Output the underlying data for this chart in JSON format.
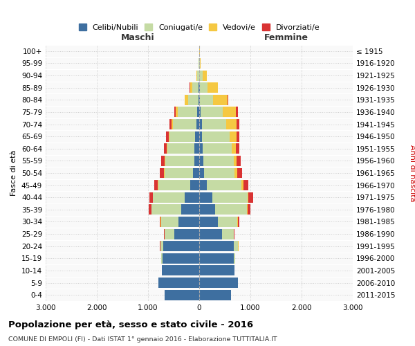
{
  "age_groups": [
    "0-4",
    "5-9",
    "10-14",
    "15-19",
    "20-24",
    "25-29",
    "30-34",
    "35-39",
    "40-44",
    "45-49",
    "50-54",
    "55-59",
    "60-64",
    "65-69",
    "70-74",
    "75-79",
    "80-84",
    "85-89",
    "90-94",
    "95-99",
    "100+"
  ],
  "birth_years": [
    "2011-2015",
    "2006-2010",
    "2001-2005",
    "1996-2000",
    "1991-1995",
    "1986-1990",
    "1981-1985",
    "1976-1980",
    "1971-1975",
    "1966-1970",
    "1961-1965",
    "1956-1960",
    "1951-1955",
    "1946-1950",
    "1941-1945",
    "1936-1940",
    "1931-1935",
    "1926-1930",
    "1921-1925",
    "1916-1920",
    "≤ 1915"
  ],
  "maschi": {
    "celibi": [
      680,
      800,
      730,
      720,
      700,
      480,
      400,
      350,
      280,
      180,
      120,
      100,
      90,
      80,
      60,
      40,
      20,
      10,
      5,
      2,
      2
    ],
    "coniugati": [
      0,
      0,
      0,
      20,
      60,
      200,
      350,
      580,
      620,
      620,
      560,
      560,
      530,
      500,
      450,
      380,
      200,
      120,
      30,
      5,
      2
    ],
    "vedovi": [
      0,
      0,
      0,
      0,
      2,
      2,
      2,
      2,
      3,
      5,
      8,
      10,
      10,
      20,
      30,
      40,
      60,
      50,
      20,
      5,
      2
    ],
    "divorziati": [
      0,
      0,
      0,
      0,
      5,
      10,
      20,
      50,
      70,
      80,
      80,
      70,
      60,
      50,
      40,
      30,
      10,
      5,
      0,
      0,
      0
    ]
  },
  "femmine": {
    "nubili": [
      620,
      760,
      690,
      680,
      680,
      440,
      360,
      310,
      260,
      150,
      100,
      80,
      70,
      60,
      50,
      30,
      20,
      10,
      5,
      2,
      2
    ],
    "coniugate": [
      0,
      0,
      0,
      20,
      80,
      230,
      380,
      620,
      680,
      680,
      590,
      590,
      560,
      530,
      480,
      430,
      250,
      150,
      60,
      10,
      2
    ],
    "vedove": [
      0,
      0,
      0,
      2,
      5,
      8,
      10,
      15,
      20,
      30,
      50,
      60,
      80,
      140,
      200,
      260,
      280,
      200,
      80,
      20,
      5
    ],
    "divorziate": [
      0,
      0,
      0,
      0,
      5,
      15,
      30,
      60,
      90,
      100,
      100,
      80,
      70,
      60,
      50,
      40,
      20,
      10,
      5,
      0,
      0
    ]
  },
  "colors": {
    "celibi": "#3e6fa0",
    "coniugati": "#c5dba4",
    "vedovi": "#f5c842",
    "divorziati": "#d93333"
  },
  "xlim": 3000,
  "xticks": [
    -3000,
    -2000,
    -1000,
    0,
    1000,
    2000,
    3000
  ],
  "xticklabels": [
    "3.000",
    "2.000",
    "1.000",
    "0",
    "1.000",
    "2.000",
    "3.000"
  ],
  "title": "Popolazione per età, sesso e stato civile - 2016",
  "subtitle": "COMUNE DI EMPOLI (FI) - Dati ISTAT 1° gennaio 2016 - Elaborazione TUTTITALIA.IT",
  "ylabel_left": "Fasce di età",
  "ylabel_right": "Anni di nascita",
  "maschi_label": "Maschi",
  "femmine_label": "Femmine",
  "legend_labels": [
    "Celibi/Nubili",
    "Coniugati/e",
    "Vedovi/e",
    "Divorziati/e"
  ],
  "bar_height": 0.85
}
